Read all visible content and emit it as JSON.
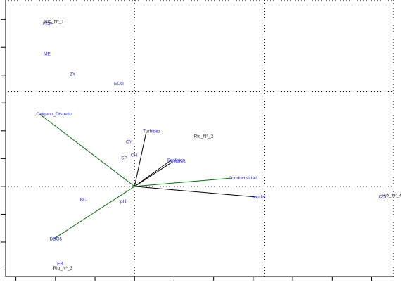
{
  "chart_data": {
    "type": "biplot",
    "xlim": [
      -1.63,
      3.28
    ],
    "ylim": [
      -1.62,
      3.35
    ],
    "xticks": [
      -1.5,
      -1,
      -0.5,
      0,
      0.5,
      1,
      1.5,
      2,
      2.5,
      3
    ],
    "yticks": [
      -1.5,
      -1,
      -0.5,
      0,
      0.5,
      1,
      1.5,
      2,
      2.5,
      3
    ],
    "xgrid": [
      0,
      1.64
    ],
    "ygrid": [
      0,
      1.7
    ],
    "species_color": "#2b2bd0",
    "site_color": "#222222",
    "species": [
      {
        "label": "EDE",
        "x": -1.16,
        "y": 2.92
      },
      {
        "label": "ME",
        "x": -1.15,
        "y": 2.38
      },
      {
        "label": "ZY",
        "x": -0.82,
        "y": 2.01
      },
      {
        "label": "EUG",
        "x": -0.26,
        "y": 1.84
      },
      {
        "label": "CY",
        "x": -0.11,
        "y": 0.8
      },
      {
        "label": "CH",
        "x": -0.05,
        "y": 0.56
      },
      {
        "label": "SP",
        "x": -0.17,
        "y": 0.51
      },
      {
        "label": "BC",
        "x": -0.69,
        "y": -0.24
      },
      {
        "label": "pH",
        "x": -0.18,
        "y": -0.27
      },
      {
        "label": "EB",
        "x": -0.98,
        "y": -1.39
      },
      {
        "label": "CO",
        "x": 3.09,
        "y": -0.19
      }
    ],
    "sites": [
      {
        "label": "Rio_Nº_1",
        "x": -1.14,
        "y": 2.96
      },
      {
        "label": "Rio_Nº_2",
        "x": 0.75,
        "y": 0.9
      },
      {
        "label": "Rio_Nº_3",
        "x": -1.03,
        "y": -1.47
      },
      {
        "label": "Rio_Nº_4",
        "x": 3.13,
        "y": -0.16
      }
    ],
    "vectors": [
      {
        "label": "Oxigeno_Disuelto",
        "x": -1.2,
        "y": 1.3,
        "color": "#0a6b0a"
      },
      {
        "label": "DBO5",
        "x": -1.03,
        "y": -0.95,
        "color": "#0a6b0a"
      },
      {
        "label": "Conductividad",
        "x": 1.23,
        "y": 0.15,
        "color": "#0a6b0a"
      },
      {
        "label": "Turbidez",
        "x": 0.15,
        "y": 0.99,
        "color": "#000000"
      },
      {
        "label": "Sulfatos",
        "x": 0.48,
        "y": 0.44,
        "color": "#000000"
      },
      {
        "label": "Fosfatos",
        "x": 0.46,
        "y": 0.47,
        "color": "#000000"
      },
      {
        "label": "caudal",
        "x": 1.53,
        "y": -0.19,
        "color": "#000000"
      }
    ]
  }
}
